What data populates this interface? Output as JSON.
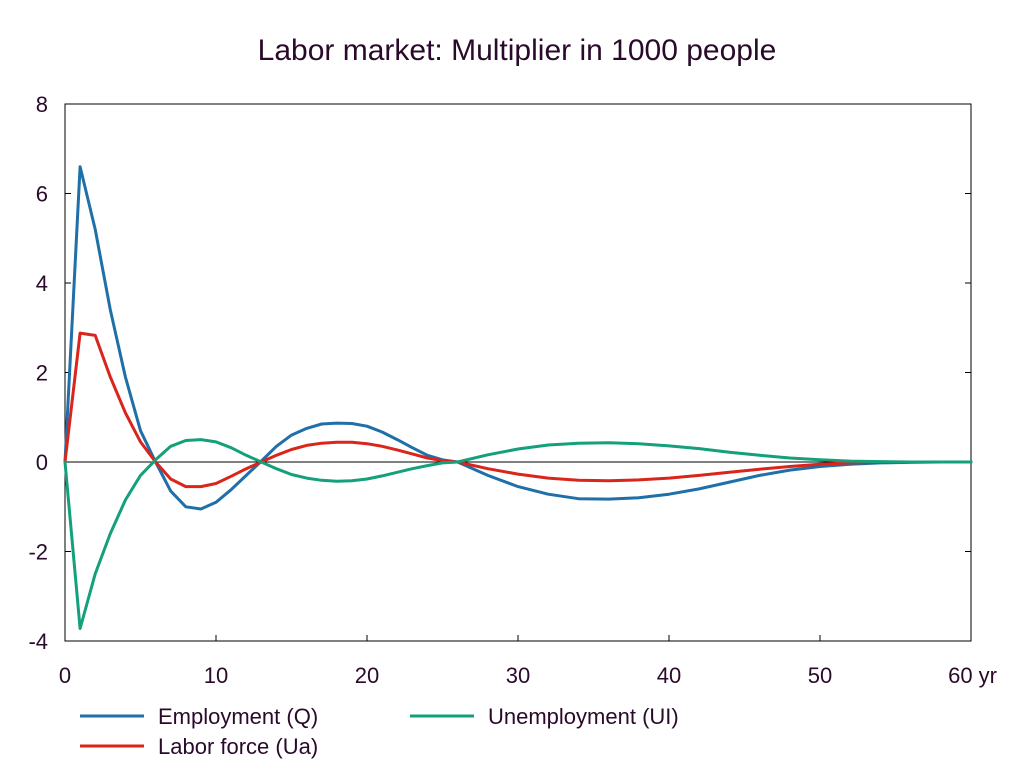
{
  "chart_data": {
    "type": "line",
    "title": "Labor market: Multiplier in 1000 people",
    "xlabel": "",
    "ylabel": "",
    "xlim": [
      0,
      60
    ],
    "ylim": [
      -4,
      8
    ],
    "x_ticks": [
      0,
      10,
      20,
      30,
      40,
      50,
      60
    ],
    "x_tick_labels": [
      "0",
      "10",
      "20",
      "30",
      "40",
      "50",
      "60 yr"
    ],
    "y_ticks": [
      -4,
      -2,
      0,
      2,
      4,
      6,
      8
    ],
    "y_tick_labels": [
      "-4",
      "-2",
      "0",
      "2",
      "4",
      "6",
      "8"
    ],
    "legend_position": "bottom",
    "series": [
      {
        "name": "Employment (Q)",
        "color": "#1f6fa8",
        "x": [
          0,
          1,
          2,
          3,
          4,
          5,
          6,
          7,
          8,
          9,
          10,
          11,
          12,
          13,
          14,
          15,
          16,
          17,
          18,
          19,
          20,
          21,
          22,
          23,
          24,
          25,
          26,
          28,
          30,
          32,
          34,
          36,
          38,
          40,
          42,
          44,
          46,
          48,
          50,
          52,
          54,
          56,
          58,
          60
        ],
        "values": [
          0,
          6.6,
          5.2,
          3.4,
          1.9,
          0.7,
          0.0,
          -0.65,
          -1.0,
          -1.05,
          -0.9,
          -0.62,
          -0.3,
          0.02,
          0.35,
          0.6,
          0.75,
          0.85,
          0.87,
          0.86,
          0.8,
          0.67,
          0.5,
          0.32,
          0.15,
          0.05,
          0.0,
          -0.3,
          -0.55,
          -0.72,
          -0.82,
          -0.83,
          -0.8,
          -0.72,
          -0.6,
          -0.45,
          -0.3,
          -0.18,
          -0.1,
          -0.05,
          -0.02,
          -0.01,
          0.0,
          0.0
        ]
      },
      {
        "name": "Labor force (Ua)",
        "color": "#d9251c",
        "x": [
          0,
          1,
          2,
          3,
          4,
          5,
          6,
          7,
          8,
          9,
          10,
          11,
          12,
          13,
          14,
          15,
          16,
          17,
          18,
          19,
          20,
          21,
          22,
          23,
          24,
          25,
          26,
          28,
          30,
          32,
          34,
          36,
          38,
          40,
          42,
          44,
          46,
          48,
          50,
          52,
          54,
          56,
          58,
          60
        ],
        "values": [
          0,
          2.88,
          2.83,
          1.9,
          1.1,
          0.45,
          0.0,
          -0.38,
          -0.55,
          -0.55,
          -0.48,
          -0.32,
          -0.15,
          0.0,
          0.15,
          0.28,
          0.37,
          0.42,
          0.44,
          0.44,
          0.41,
          0.35,
          0.27,
          0.18,
          0.09,
          0.03,
          0.0,
          -0.15,
          -0.27,
          -0.36,
          -0.41,
          -0.42,
          -0.4,
          -0.36,
          -0.3,
          -0.23,
          -0.16,
          -0.1,
          -0.05,
          -0.02,
          -0.01,
          0.0,
          0.0,
          0.0
        ]
      },
      {
        "name": "Unemployment (UI)",
        "color": "#13a07a",
        "x": [
          0,
          1,
          2,
          3,
          4,
          5,
          6,
          7,
          8,
          9,
          10,
          11,
          12,
          13,
          14,
          15,
          16,
          17,
          18,
          19,
          20,
          21,
          22,
          23,
          24,
          25,
          26,
          28,
          30,
          32,
          34,
          36,
          38,
          40,
          42,
          44,
          46,
          48,
          50,
          52,
          54,
          56,
          58,
          60
        ],
        "values": [
          0,
          -3.72,
          -2.5,
          -1.6,
          -0.85,
          -0.3,
          0.05,
          0.35,
          0.48,
          0.5,
          0.45,
          0.32,
          0.15,
          0.0,
          -0.15,
          -0.28,
          -0.36,
          -0.41,
          -0.43,
          -0.42,
          -0.38,
          -0.31,
          -0.23,
          -0.15,
          -0.08,
          -0.02,
          0.0,
          0.16,
          0.29,
          0.38,
          0.42,
          0.43,
          0.41,
          0.36,
          0.3,
          0.22,
          0.15,
          0.09,
          0.05,
          0.02,
          0.01,
          0.0,
          0.0,
          0.0
        ]
      }
    ]
  }
}
